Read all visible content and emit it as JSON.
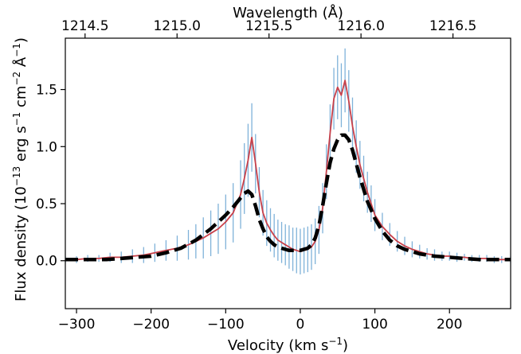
{
  "chart_data": {
    "type": "line",
    "xlabel": "Velocity (km s",
    "xlabel_sup": "−1",
    "xlabel_tail": ")",
    "top_xlabel": "Wavelength (Å)",
    "ylabel_parts": [
      "Flux density (10",
      "−13",
      " erg s",
      "−1",
      " cm",
      "−2",
      " Å",
      "−1",
      ")"
    ],
    "xlim": [
      -315,
      282
    ],
    "ylim": [
      -0.42,
      1.95
    ],
    "x_ticks": [
      -300,
      -200,
      -100,
      0,
      100,
      200
    ],
    "x_tick_labels": [
      "−300",
      "−200",
      "−100",
      "0",
      "100",
      "200"
    ],
    "y_ticks": [
      0.0,
      0.5,
      1.0,
      1.5
    ],
    "y_tick_labels": [
      "0.0",
      "0.5",
      "1.0",
      "1.5"
    ],
    "top_ticks": [
      1214.5,
      1215.0,
      1215.5,
      1216.0,
      1216.5
    ],
    "top_tick_labels": [
      "1214.5",
      "1215.0",
      "1215.5",
      "1216.0",
      "1216.5"
    ],
    "top_axis_transform": {
      "rest_wavelength": 1215.67,
      "c_km_s": 299792.458
    },
    "observed_profile": {
      "color": "#c8404a",
      "error_color": "#7fb2d9",
      "x": [
        -315,
        -300,
        -285,
        -270,
        -255,
        -240,
        -225,
        -210,
        -195,
        -180,
        -165,
        -150,
        -140,
        -130,
        -120,
        -110,
        -100,
        -90,
        -80,
        -75,
        -70,
        -65,
        -60,
        -55,
        -50,
        -45,
        -40,
        -35,
        -30,
        -25,
        -20,
        -15,
        -10,
        -5,
        0,
        5,
        10,
        15,
        20,
        25,
        30,
        35,
        40,
        45,
        50,
        55,
        60,
        65,
        70,
        75,
        80,
        85,
        90,
        95,
        100,
        110,
        120,
        130,
        140,
        150,
        160,
        170,
        180,
        190,
        200,
        210,
        220,
        230,
        240,
        250,
        260,
        270,
        282
      ],
      "y": [
        0.01,
        0.01,
        0.02,
        0.02,
        0.03,
        0.03,
        0.04,
        0.05,
        0.07,
        0.09,
        0.11,
        0.14,
        0.17,
        0.2,
        0.24,
        0.28,
        0.34,
        0.42,
        0.58,
        0.72,
        0.88,
        1.08,
        0.85,
        0.6,
        0.42,
        0.33,
        0.27,
        0.22,
        0.18,
        0.16,
        0.14,
        0.12,
        0.1,
        0.09,
        0.08,
        0.09,
        0.1,
        0.12,
        0.17,
        0.27,
        0.46,
        0.78,
        1.12,
        1.42,
        1.52,
        1.45,
        1.58,
        1.4,
        1.18,
        1.0,
        0.84,
        0.72,
        0.6,
        0.5,
        0.4,
        0.3,
        0.23,
        0.17,
        0.13,
        0.1,
        0.08,
        0.06,
        0.05,
        0.04,
        0.04,
        0.03,
        0.03,
        0.02,
        0.02,
        0.02,
        0.01,
        0.01,
        0.01
      ],
      "err": [
        0.03,
        0.03,
        0.03,
        0.03,
        0.04,
        0.05,
        0.06,
        0.07,
        0.08,
        0.09,
        0.11,
        0.13,
        0.15,
        0.18,
        0.2,
        0.22,
        0.24,
        0.26,
        0.3,
        0.31,
        0.32,
        0.3,
        0.26,
        0.22,
        0.2,
        0.2,
        0.19,
        0.19,
        0.18,
        0.18,
        0.18,
        0.19,
        0.19,
        0.2,
        0.2,
        0.2,
        0.2,
        0.2,
        0.2,
        0.21,
        0.22,
        0.24,
        0.25,
        0.27,
        0.28,
        0.28,
        0.28,
        0.27,
        0.25,
        0.23,
        0.21,
        0.2,
        0.18,
        0.16,
        0.14,
        0.12,
        0.1,
        0.09,
        0.08,
        0.07,
        0.06,
        0.05,
        0.05,
        0.04,
        0.04,
        0.04,
        0.03,
        0.03,
        0.03,
        0.03,
        0.03,
        0.03,
        0.03
      ]
    },
    "model_profile": {
      "color": "#000000",
      "style": "dashed",
      "x": [
        -315,
        -300,
        -280,
        -260,
        -240,
        -220,
        -200,
        -180,
        -160,
        -140,
        -120,
        -100,
        -90,
        -80,
        -75,
        -70,
        -65,
        -60,
        -55,
        -50,
        -45,
        -40,
        -35,
        -30,
        -25,
        -20,
        -15,
        -10,
        -5,
        0,
        5,
        10,
        15,
        20,
        25,
        30,
        35,
        40,
        45,
        50,
        55,
        60,
        65,
        70,
        75,
        80,
        90,
        100,
        110,
        120,
        130,
        140,
        160,
        180,
        200,
        220,
        240,
        260,
        282
      ],
      "y": [
        0.01,
        0.01,
        0.01,
        0.01,
        0.02,
        0.03,
        0.04,
        0.07,
        0.11,
        0.18,
        0.28,
        0.4,
        0.47,
        0.55,
        0.59,
        0.61,
        0.58,
        0.48,
        0.36,
        0.28,
        0.21,
        0.17,
        0.14,
        0.12,
        0.11,
        0.1,
        0.09,
        0.09,
        0.09,
        0.09,
        0.1,
        0.11,
        0.14,
        0.2,
        0.31,
        0.48,
        0.68,
        0.86,
        0.98,
        1.06,
        1.1,
        1.1,
        1.06,
        0.97,
        0.85,
        0.73,
        0.52,
        0.37,
        0.26,
        0.18,
        0.13,
        0.1,
        0.06,
        0.04,
        0.03,
        0.02,
        0.01,
        0.01,
        0.01
      ]
    }
  }
}
